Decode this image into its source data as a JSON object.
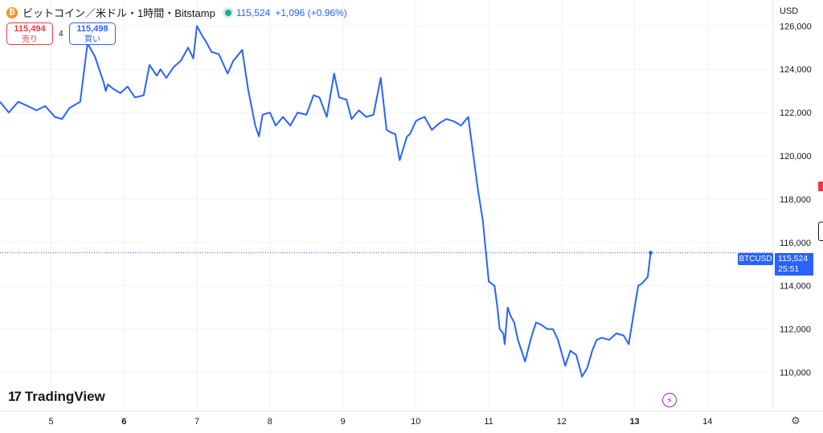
{
  "header": {
    "coin_glyph": "₿",
    "symbol": "ビットコイン／米ドル・1時間・Bitstamp",
    "price": "115,524",
    "change": "+1,096 (+0.96%)"
  },
  "quotes": {
    "sell_value": "115,494",
    "sell_label": "売り",
    "spread": "4",
    "buy_value": "115,498",
    "buy_label": "買い"
  },
  "currency": "USD",
  "logo": {
    "mark": "17",
    "text": "TradingView"
  },
  "last_price_tag": {
    "label": "BTCUSD",
    "price": "115,524",
    "countdown": "25:51"
  },
  "icons": {
    "bolt": "lightning-icon",
    "settings": "gear-icon"
  },
  "colors": {
    "line": "#2962ff",
    "accent": "#2962ff",
    "sell": "#f23645",
    "coin": "#f7931a",
    "grid": "#f0f3fa"
  },
  "chart_data": {
    "type": "line",
    "title": "",
    "xlabel": "",
    "ylabel": "",
    "x_ticks": [
      {
        "label": "5",
        "x": 5,
        "bold": false
      },
      {
        "label": "6",
        "x": 6,
        "bold": true
      },
      {
        "label": "7",
        "x": 7,
        "bold": false
      },
      {
        "label": "8",
        "x": 8,
        "bold": false
      },
      {
        "label": "9",
        "x": 9,
        "bold": false
      },
      {
        "label": "10",
        "x": 10,
        "bold": false
      },
      {
        "label": "11",
        "x": 11,
        "bold": false
      },
      {
        "label": "12",
        "x": 12,
        "bold": false
      },
      {
        "label": "13",
        "x": 13,
        "bold": true
      },
      {
        "label": "14",
        "x": 14,
        "bold": false
      }
    ],
    "y_ticks": [
      110000,
      112000,
      114000,
      116000,
      118000,
      120000,
      122000,
      124000,
      126000
    ],
    "y_tick_labels": [
      "110,000",
      "112,000",
      "114,000",
      "116,000",
      "118,000",
      "120,000",
      "122,000",
      "124,000",
      "126,000"
    ],
    "xlim": [
      4.3,
      14.9
    ],
    "ylim": [
      108200,
      127200
    ],
    "last_value": 115524,
    "series": [
      {
        "x": [
          4.3,
          4.42,
          4.55,
          4.68,
          4.8,
          4.92,
          5.05,
          5.15,
          5.25,
          5.4,
          5.5,
          5.55,
          5.6,
          5.72,
          5.75,
          5.78,
          5.85,
          5.95,
          6.05,
          6.15,
          6.27,
          6.35,
          6.45,
          6.5,
          6.58,
          6.68,
          6.78,
          6.88,
          6.95,
          7.0,
          7.08,
          7.12,
          7.2,
          7.3,
          7.42,
          7.5,
          7.55,
          7.62,
          7.7,
          7.8,
          7.85,
          7.9,
          8.0,
          8.08,
          8.18,
          8.28,
          8.38,
          8.5,
          8.6,
          8.68,
          8.78,
          8.88,
          8.95,
          9.05,
          9.12,
          9.22,
          9.32,
          9.42,
          9.52,
          9.6,
          9.65,
          9.72,
          9.78,
          9.88,
          9.92,
          10.0,
          10.05,
          10.12,
          10.22,
          10.32,
          10.42,
          10.52,
          10.62,
          10.72,
          10.85,
          10.92,
          11.0,
          11.08,
          11.12,
          11.15,
          11.2,
          11.22,
          11.26,
          11.3,
          11.35,
          11.4,
          11.45,
          11.5,
          11.55,
          11.6,
          11.65,
          11.72,
          11.8,
          11.88,
          11.95,
          12.05,
          12.12,
          12.2,
          12.28,
          12.35,
          12.42,
          12.48,
          12.55,
          12.65,
          12.75,
          12.85,
          12.92,
          13.0,
          13.05,
          13.1,
          13.18,
          13.22
        ],
        "y": [
          122500,
          122000,
          122500,
          122300,
          122100,
          122300,
          121800,
          121700,
          122200,
          122500,
          125200,
          124900,
          124600,
          123400,
          123000,
          123300,
          123100,
          122900,
          123200,
          122700,
          122800,
          124200,
          123700,
          124000,
          123600,
          124100,
          124400,
          125000,
          124500,
          126000,
          125500,
          125300,
          124800,
          124700,
          123800,
          124400,
          124600,
          124900,
          123100,
          121400,
          120900,
          121900,
          122000,
          121400,
          121800,
          121400,
          122000,
          121900,
          122800,
          122700,
          121800,
          123800,
          122700,
          122600,
          121700,
          122100,
          121800,
          121900,
          123600,
          121200,
          121100,
          121000,
          119800,
          120900,
          121000,
          121600,
          121700,
          121800,
          121200,
          121500,
          121700,
          121600,
          121400,
          121800,
          118500,
          117000,
          114200,
          114000,
          113000,
          112000,
          111800,
          111300,
          113000,
          112600,
          112300,
          111500,
          111000,
          110500,
          111200,
          111800,
          112300,
          112200,
          112000,
          112000,
          111500,
          110300,
          111000,
          110800,
          109800,
          110200,
          111000,
          111500,
          111600,
          111500,
          111800,
          111700,
          111300,
          113000,
          114000,
          114100,
          114400,
          115524
        ]
      }
    ]
  }
}
